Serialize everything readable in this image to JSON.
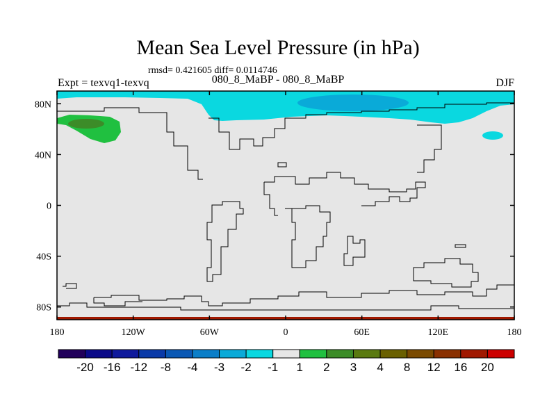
{
  "header": {
    "title": "Mean Sea Level Pressure (in hPa)",
    "stats": "rmsd= 0.421605 diff= 0.0114746",
    "experiment": "Expt = texvq1-texvq",
    "subtitle": "080_8_MaBP - 080_8_MaBP",
    "season": "DJF"
  },
  "chart_data": {
    "type": "heatmap",
    "title": "Mean Sea Level Pressure (in hPa)",
    "xlabel": "",
    "ylabel": "",
    "xlim": [
      -180,
      180
    ],
    "ylim": [
      -90,
      90
    ],
    "x_ticks": [
      {
        "value": -180,
        "label": "180"
      },
      {
        "value": -120,
        "label": "120W"
      },
      {
        "value": -60,
        "label": "60W"
      },
      {
        "value": 0,
        "label": "0"
      },
      {
        "value": 60,
        "label": "60E"
      },
      {
        "value": 120,
        "label": "120E"
      },
      {
        "value": 180,
        "label": "180"
      }
    ],
    "y_ticks": [
      {
        "value": 80,
        "label": "80N"
      },
      {
        "value": 40,
        "label": "40N"
      },
      {
        "value": 0,
        "label": "0"
      },
      {
        "value": -40,
        "label": "40S"
      },
      {
        "value": -80,
        "label": "80S"
      }
    ],
    "background_bin": "-1 to 1",
    "colorbar": {
      "colors": [
        "#21005a",
        "#0b0a88",
        "#0f1a9c",
        "#0a3aa8",
        "#0a58b4",
        "#0a7ec8",
        "#0aaad8",
        "#0ad8e0",
        "#e6e6e6",
        "#20c040",
        "#3c8c28",
        "#5a7a10",
        "#6a6000",
        "#7a4a00",
        "#8a3000",
        "#a01800",
        "#cc0000"
      ],
      "labels": [
        "-20",
        "-16",
        "-12",
        "-8",
        "-4",
        "-3",
        "-2",
        "-1",
        "1",
        "2",
        "3",
        "4",
        "8",
        "12",
        "16",
        "20"
      ]
    },
    "features": [
      {
        "region": "Arctic band",
        "lon_range": [
          -180,
          180
        ],
        "lat_range": [
          70,
          90
        ],
        "bin": "-2 to -1"
      },
      {
        "region": "Arctic core near 80N",
        "lon_range": [
          10,
          95
        ],
        "lat_range": [
          78,
          86
        ],
        "bin": "-3 to -2"
      },
      {
        "region": "North Pacific high",
        "lon_range": [
          -180,
          -144
        ],
        "lat_range": [
          53,
          73
        ],
        "bin": "1 to 2"
      },
      {
        "region": "North Pacific core",
        "lon_range": [
          -170,
          -150
        ],
        "lat_range": [
          60,
          68
        ],
        "bin": "3 to 4"
      },
      {
        "region": "NE Asia patch",
        "lon_range": [
          155,
          168
        ],
        "lat_range": [
          50,
          57
        ],
        "bin": "-2 to -1"
      },
      {
        "region": "Antarctic edge",
        "lon_range": [
          -180,
          180
        ],
        "lat_range": [
          -90,
          -88
        ],
        "bin": "12 to 20"
      }
    ]
  }
}
